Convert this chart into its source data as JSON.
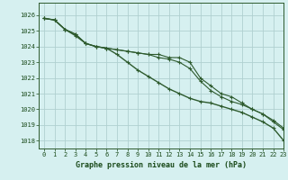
{
  "title": "Graphe pression niveau de la mer (hPa)",
  "bg_color": "#d6f0f0",
  "grid_color": "#b0d0d0",
  "line_color": "#2d5a2d",
  "xlim": [
    -0.5,
    23
  ],
  "ylim": [
    1017.5,
    1026.8
  ],
  "yticks": [
    1018,
    1019,
    1020,
    1021,
    1022,
    1023,
    1024,
    1025,
    1026
  ],
  "xticks": [
    0,
    1,
    2,
    3,
    4,
    5,
    6,
    7,
    8,
    9,
    10,
    11,
    12,
    13,
    14,
    15,
    16,
    17,
    18,
    19,
    20,
    21,
    22,
    23
  ],
  "line1_x": [
    0,
    1,
    2,
    3,
    4,
    5,
    6,
    7,
    8,
    9,
    10,
    11,
    12,
    13,
    14,
    15,
    16,
    17,
    18,
    19,
    20,
    21,
    22,
    23
  ],
  "line1_y": [
    1025.8,
    1025.7,
    1025.1,
    1024.8,
    1024.2,
    1024.0,
    1023.9,
    1023.8,
    1023.7,
    1023.6,
    1023.5,
    1023.5,
    1023.3,
    1023.3,
    1023.0,
    1022.0,
    1021.5,
    1021.0,
    1020.8,
    1020.4,
    1020.0,
    1019.7,
    1019.3,
    1018.8
  ],
  "line2_x": [
    0,
    1,
    2,
    3,
    4,
    5,
    6,
    7,
    8,
    9,
    10,
    11,
    12,
    13,
    14,
    15,
    16,
    17,
    18,
    19,
    20,
    21,
    22,
    23
  ],
  "line2_y": [
    1025.8,
    1025.7,
    1025.1,
    1024.8,
    1024.2,
    1024.0,
    1023.9,
    1023.8,
    1023.7,
    1023.6,
    1023.5,
    1023.3,
    1023.2,
    1023.0,
    1022.6,
    1021.8,
    1021.2,
    1020.8,
    1020.5,
    1020.3,
    1020.0,
    1019.7,
    1019.2,
    1018.7
  ],
  "line3_x": [
    0,
    1,
    2,
    3,
    4,
    5,
    6,
    7,
    8,
    9,
    10,
    11,
    12,
    13,
    14,
    15,
    16,
    17,
    18,
    19,
    20,
    21,
    22,
    23
  ],
  "line3_y": [
    1025.8,
    1025.7,
    1025.1,
    1024.7,
    1024.2,
    1024.0,
    1023.9,
    1023.5,
    1023.0,
    1022.5,
    1022.1,
    1021.7,
    1021.3,
    1021.0,
    1020.7,
    1020.5,
    1020.4,
    1020.2,
    1020.0,
    1019.8,
    1019.5,
    1019.2,
    1018.8,
    1018.0
  ],
  "xlabel_fontsize": 6,
  "tick_fontsize": 5,
  "label_color": "#1a4a1a"
}
